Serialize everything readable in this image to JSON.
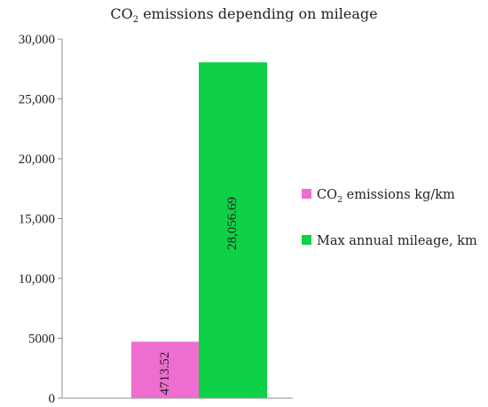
{
  "chart_data": {
    "type": "bar",
    "title_parts": [
      "CO",
      "2",
      " emissions depending  on mileage"
    ],
    "ylim": [
      0,
      30000
    ],
    "yticks": [
      0,
      5000,
      10000,
      15000,
      20000,
      25000,
      30000
    ],
    "ytick_labels": [
      "0",
      "5000",
      "10,000",
      "15,000",
      "20,000",
      "25,000",
      "30,000"
    ],
    "series": [
      {
        "name_parts": [
          "CO",
          "2",
          " emissions kg/km"
        ],
        "value": 4713.52,
        "label": "4713.52",
        "color": "#ee6dd0"
      },
      {
        "name_parts": [
          "Max annual mileage, km"
        ],
        "value": 28056.69,
        "label": "28,056.69",
        "color": "#0fd147"
      }
    ],
    "legend_position": "right",
    "grid": false
  }
}
